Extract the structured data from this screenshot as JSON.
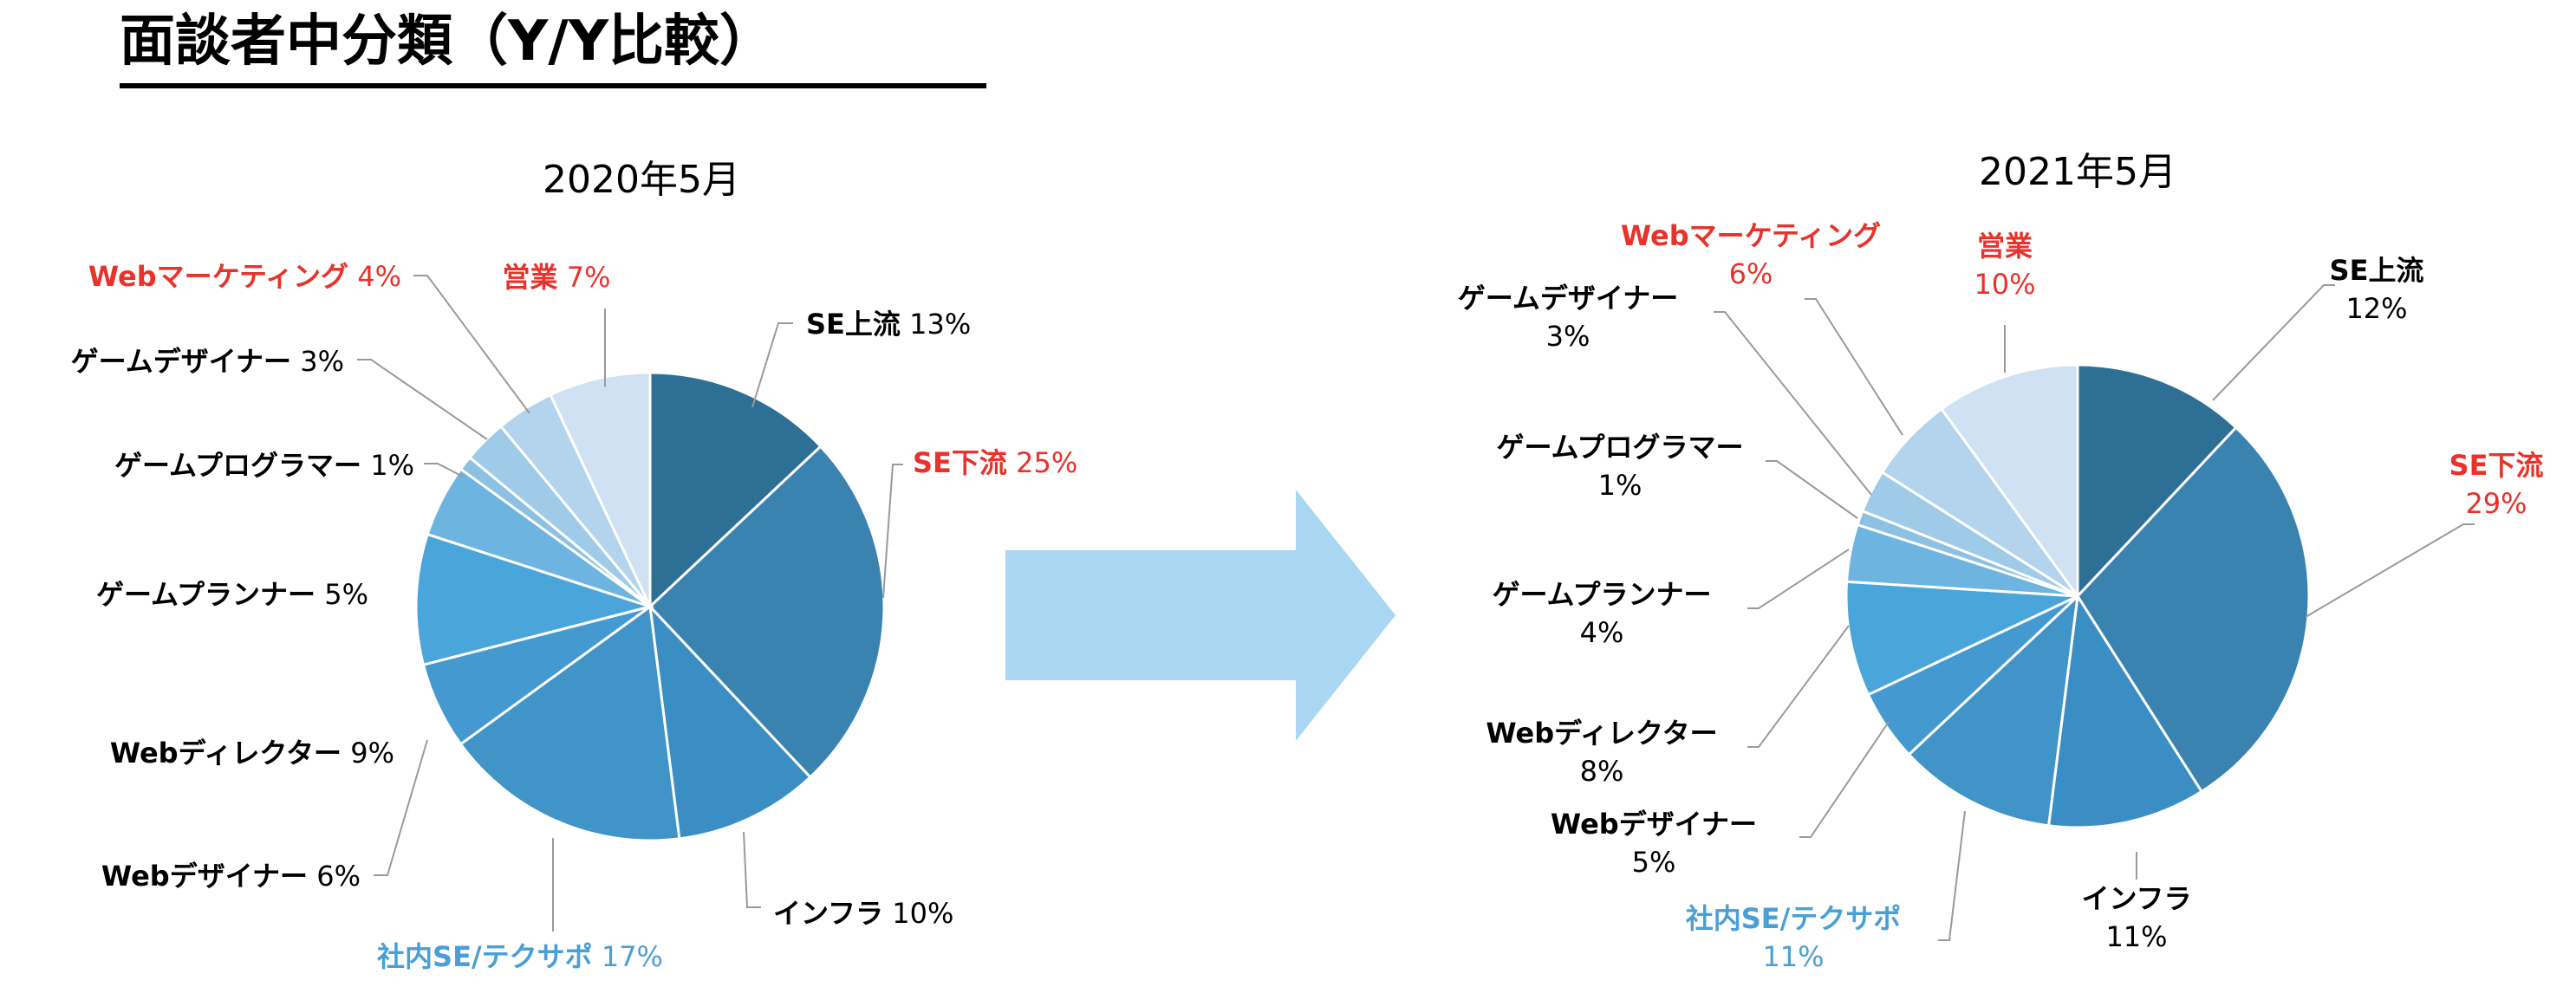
{
  "page": {
    "title": "面談者中分類（Y/Y比較）"
  },
  "chart_data": [
    {
      "type": "pie",
      "title": "2020年5月",
      "slices": [
        {
          "name": "SE上流",
          "value": 13,
          "value_label": "13%",
          "color": "#2e6f96",
          "label_color": "#000000"
        },
        {
          "name": "SE下流",
          "value": 25,
          "value_label": "25%",
          "color": "#3a83b1",
          "label_color": "#e8322b"
        },
        {
          "name": "インフラ",
          "value": 10,
          "value_label": "10%",
          "color": "#3b8ec3",
          "label_color": "#000000"
        },
        {
          "name": "社内SE/テクサポ",
          "value": 17,
          "value_label": "17%",
          "color": "#4094c8",
          "label_color": "#4a9fd6"
        },
        {
          "name": "Webデザイナー",
          "value": 6,
          "value_label": "6%",
          "color": "#449ad0",
          "label_color": "#000000"
        },
        {
          "name": "Webディレクター",
          "value": 9,
          "value_label": "9%",
          "color": "#4aa5db",
          "label_color": "#000000"
        },
        {
          "name": "ゲームプランナー",
          "value": 5,
          "value_label": "5%",
          "color": "#6eb4e0",
          "label_color": "#000000"
        },
        {
          "name": "ゲームプログラマー",
          "value": 1,
          "value_label": "1%",
          "color": "#8cc1e4",
          "label_color": "#000000"
        },
        {
          "name": "ゲームデザイナー",
          "value": 3,
          "value_label": "3%",
          "color": "#9fcbe8",
          "label_color": "#000000"
        },
        {
          "name": "Webマーケティング",
          "value": 4,
          "value_label": "4%",
          "color": "#b3d4ec",
          "label_color": "#e8322b"
        },
        {
          "name": "営業",
          "value": 7,
          "value_label": "7%",
          "color": "#cfe1f2",
          "label_color": "#e8322b"
        }
      ]
    },
    {
      "type": "pie",
      "title": "2021年5月",
      "slices": [
        {
          "name": "SE上流",
          "value": 12,
          "value_label": "12%",
          "color": "#2e6f96",
          "label_color": "#000000"
        },
        {
          "name": "SE下流",
          "value": 29,
          "value_label": "29%",
          "color": "#3a83b1",
          "label_color": "#e8322b"
        },
        {
          "name": "インフラ",
          "value": 11,
          "value_label": "11%",
          "color": "#3b8ec3",
          "label_color": "#000000"
        },
        {
          "name": "社内SE/テクサポ",
          "value": 11,
          "value_label": "11%",
          "color": "#4094c8",
          "label_color": "#4a9fd6"
        },
        {
          "name": "Webデザイナー",
          "value": 5,
          "value_label": "5%",
          "color": "#449ad0",
          "label_color": "#000000"
        },
        {
          "name": "Webディレクター",
          "value": 8,
          "value_label": "8%",
          "color": "#4aa5db",
          "label_color": "#000000"
        },
        {
          "name": "ゲームプランナー",
          "value": 4,
          "value_label": "4%",
          "color": "#6eb4e0",
          "label_color": "#000000"
        },
        {
          "name": "ゲームプログラマー",
          "value": 1,
          "value_label": "1%",
          "color": "#8cc1e4",
          "label_color": "#000000"
        },
        {
          "name": "ゲームデザイナー",
          "value": 3,
          "value_label": "3%",
          "color": "#9fcbe8",
          "label_color": "#000000"
        },
        {
          "name": "Webマーケティング",
          "value": 6,
          "value_label": "6%",
          "color": "#b3d4ec",
          "label_color": "#e8322b"
        },
        {
          "name": "営業",
          "value": 10,
          "value_label": "10%",
          "color": "#cfe1f2",
          "label_color": "#e8322b"
        }
      ]
    }
  ],
  "arrow": {
    "color": "#a9d6f0"
  }
}
